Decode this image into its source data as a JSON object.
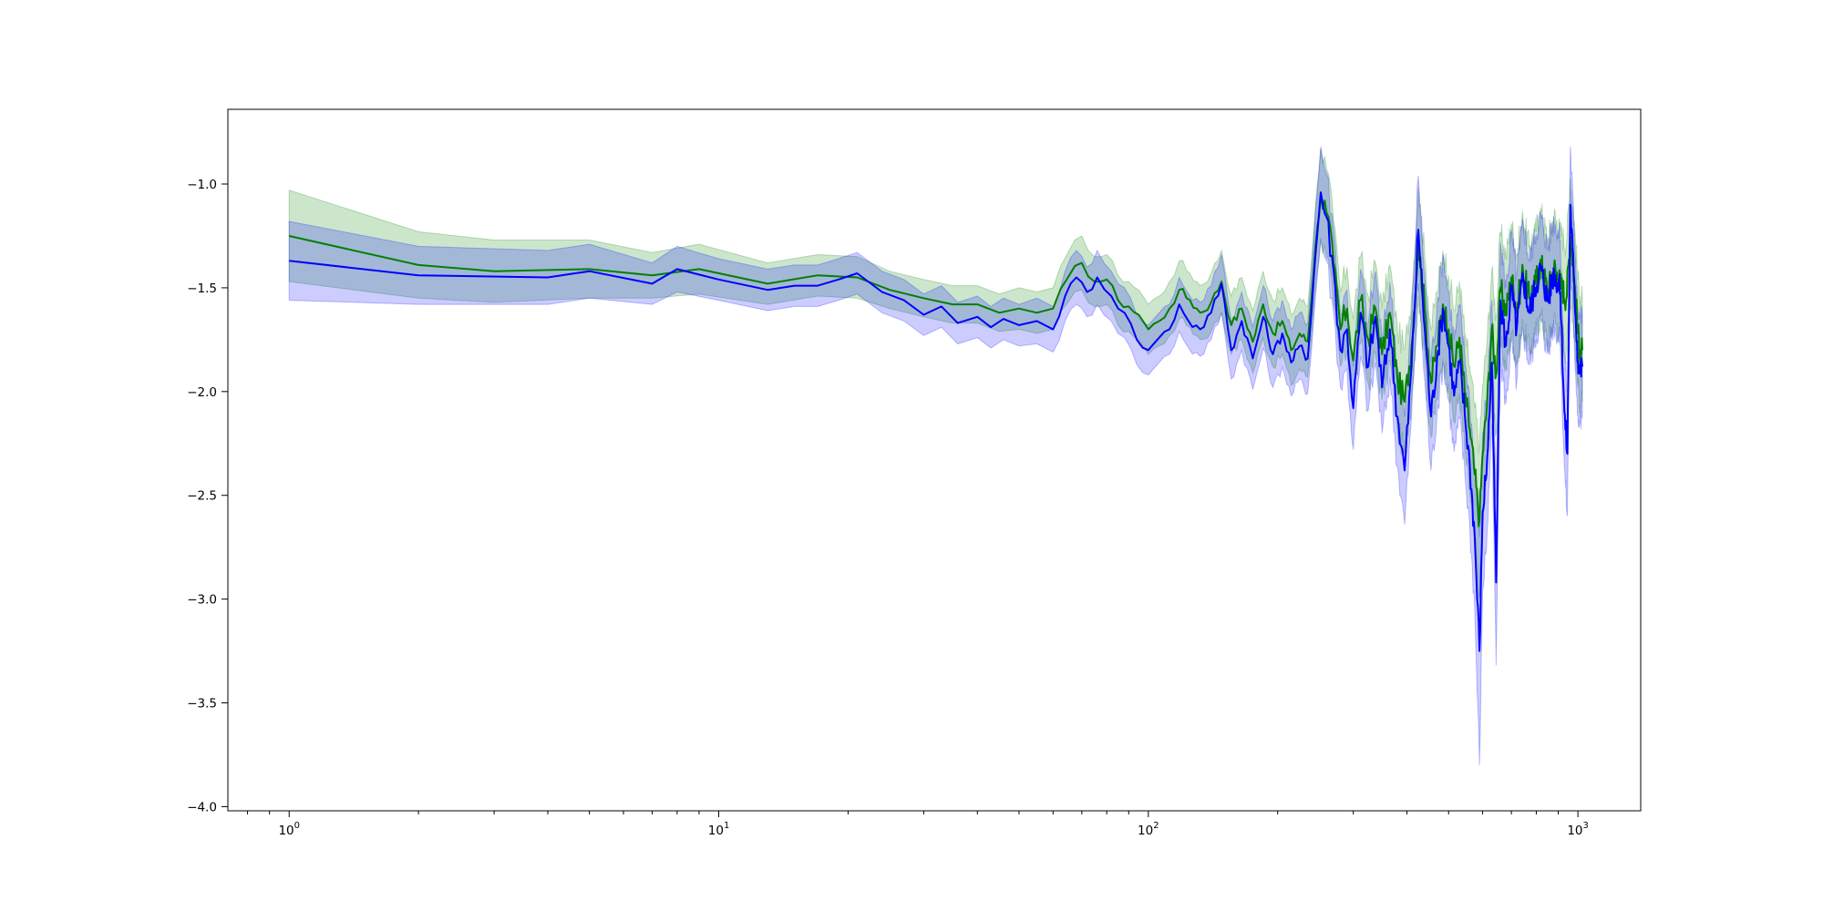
{
  "chart_data": {
    "type": "line",
    "title": "",
    "xlabel": "",
    "ylabel": "",
    "x_scale": "log",
    "xlim": [
      0.72,
      1400
    ],
    "ylim": [
      -4.02,
      -0.64
    ],
    "grid": false,
    "legend": "none",
    "x_ticks": [
      {
        "value": 1,
        "base": "10",
        "exp": "0"
      },
      {
        "value": 10,
        "base": "10",
        "exp": "1"
      },
      {
        "value": 100,
        "base": "10",
        "exp": "2"
      },
      {
        "value": 1000,
        "base": "10",
        "exp": "3"
      }
    ],
    "y_ticks": [
      {
        "value": -1.0,
        "label": "−1.0"
      },
      {
        "value": -1.5,
        "label": "−1.5"
      },
      {
        "value": -2.0,
        "label": "−2.0"
      },
      {
        "value": -2.5,
        "label": "−2.5"
      },
      {
        "value": -3.0,
        "label": "−3.0"
      },
      {
        "value": -3.5,
        "label": "−3.5"
      },
      {
        "value": -4.0,
        "label": "−4.0"
      }
    ],
    "series": [
      {
        "color": "#008000",
        "band_color": "#008000",
        "band_opacity": 0.2,
        "points": [
          [
            1,
            -1.25,
            0.22
          ],
          [
            2,
            -1.39,
            0.16
          ],
          [
            3,
            -1.42,
            0.15
          ],
          [
            5,
            -1.41,
            0.14
          ],
          [
            7,
            -1.44,
            0.11
          ],
          [
            9,
            -1.41,
            0.12
          ],
          [
            13,
            -1.48,
            0.1
          ],
          [
            17,
            -1.44,
            0.1
          ],
          [
            21,
            -1.45,
            0.1
          ],
          [
            25,
            -1.51,
            0.09
          ],
          [
            30,
            -1.55,
            0.09
          ],
          [
            35,
            -1.58,
            0.09
          ],
          [
            40,
            -1.58,
            0.09
          ],
          [
            45,
            -1.62,
            0.09
          ],
          [
            50,
            -1.6,
            0.1
          ],
          [
            55,
            -1.62,
            0.1
          ],
          [
            60,
            -1.6,
            0.1
          ],
          [
            65,
            -1.45,
            0.12
          ],
          [
            70,
            -1.38,
            0.13
          ],
          [
            75,
            -1.47,
            0.12
          ],
          [
            80,
            -1.46,
            0.12
          ],
          [
            85,
            -1.56,
            0.12
          ],
          [
            90,
            -1.59,
            0.12
          ],
          [
            95,
            -1.63,
            0.12
          ],
          [
            100,
            -1.7,
            0.12
          ],
          [
            106,
            -1.66,
            0.12
          ],
          [
            112,
            -1.6,
            0.13
          ],
          [
            118,
            -1.51,
            0.14
          ],
          [
            125,
            -1.56,
            0.13
          ],
          [
            132,
            -1.62,
            0.13
          ],
          [
            140,
            -1.57,
            0.14
          ],
          [
            148,
            -1.47,
            0.15
          ],
          [
            156,
            -1.68,
            0.14
          ],
          [
            165,
            -1.6,
            0.15
          ],
          [
            175,
            -1.76,
            0.15
          ],
          [
            185,
            -1.58,
            0.16
          ],
          [
            195,
            -1.72,
            0.16
          ],
          [
            205,
            -1.66,
            0.16
          ],
          [
            215,
            -1.8,
            0.17
          ],
          [
            225,
            -1.72,
            0.17
          ],
          [
            235,
            -1.76,
            0.17
          ],
          [
            245,
            -1.3,
            0.2
          ],
          [
            252,
            -1.05,
            0.22
          ],
          [
            260,
            -1.14,
            0.21
          ],
          [
            270,
            -1.38,
            0.2
          ],
          [
            280,
            -1.7,
            0.18
          ],
          [
            290,
            -1.6,
            0.2
          ],
          [
            300,
            -1.85,
            0.2
          ],
          [
            312,
            -1.56,
            0.21
          ],
          [
            325,
            -1.75,
            0.21
          ],
          [
            338,
            -1.6,
            0.22
          ],
          [
            350,
            -1.82,
            0.22
          ],
          [
            365,
            -1.62,
            0.23
          ],
          [
            380,
            -1.94,
            0.24
          ],
          [
            395,
            -2.05,
            0.25
          ],
          [
            410,
            -1.78,
            0.24
          ],
          [
            425,
            -1.28,
            0.26
          ],
          [
            440,
            -1.6,
            0.25
          ],
          [
            455,
            -1.96,
            0.26
          ],
          [
            470,
            -1.78,
            0.26
          ],
          [
            485,
            -1.58,
            0.26
          ],
          [
            500,
            -1.7,
            0.26
          ],
          [
            515,
            -1.88,
            0.27
          ],
          [
            530,
            -1.74,
            0.27
          ],
          [
            545,
            -2.0,
            0.28
          ],
          [
            560,
            -2.18,
            0.3
          ],
          [
            575,
            -2.4,
            0.32
          ],
          [
            590,
            -2.62,
            0.36
          ],
          [
            600,
            -2.3,
            0.33
          ],
          [
            615,
            -2.05,
            0.3
          ],
          [
            630,
            -1.7,
            0.28
          ],
          [
            645,
            -1.92,
            0.28
          ],
          [
            660,
            -1.5,
            0.27
          ],
          [
            680,
            -1.62,
            0.27
          ],
          [
            700,
            -1.45,
            0.26
          ],
          [
            720,
            -1.6,
            0.26
          ],
          [
            745,
            -1.42,
            0.26
          ],
          [
            770,
            -1.55,
            0.25
          ],
          [
            795,
            -1.48,
            0.25
          ],
          [
            820,
            -1.38,
            0.25
          ],
          [
            850,
            -1.52,
            0.25
          ],
          [
            880,
            -1.4,
            0.25
          ],
          [
            910,
            -1.48,
            0.25
          ],
          [
            940,
            -1.55,
            0.26
          ],
          [
            960,
            -1.25,
            0.28
          ],
          [
            980,
            -1.45,
            0.27
          ],
          [
            1000,
            -1.72,
            0.26
          ],
          [
            1010,
            -1.8,
            0.26
          ],
          [
            1024,
            -1.8,
            0.25
          ]
        ]
      },
      {
        "color": "#0000ff",
        "band_color": "#0000ff",
        "band_opacity": 0.2,
        "points": [
          [
            1,
            -1.37,
            0.19
          ],
          [
            2,
            -1.44,
            0.14
          ],
          [
            4,
            -1.45,
            0.13
          ],
          [
            5,
            -1.42,
            0.13
          ],
          [
            7,
            -1.48,
            0.1
          ],
          [
            8,
            -1.41,
            0.11
          ],
          [
            10,
            -1.46,
            0.1
          ],
          [
            13,
            -1.51,
            0.1
          ],
          [
            15,
            -1.49,
            0.1
          ],
          [
            17,
            -1.49,
            0.1
          ],
          [
            19,
            -1.46,
            0.1
          ],
          [
            21,
            -1.43,
            0.1
          ],
          [
            24,
            -1.52,
            0.1
          ],
          [
            27,
            -1.56,
            0.1
          ],
          [
            30,
            -1.63,
            0.1
          ],
          [
            33,
            -1.59,
            0.1
          ],
          [
            36,
            -1.67,
            0.1
          ],
          [
            40,
            -1.64,
            0.1
          ],
          [
            43,
            -1.69,
            0.1
          ],
          [
            46,
            -1.65,
            0.1
          ],
          [
            50,
            -1.68,
            0.1
          ],
          [
            55,
            -1.66,
            0.11
          ],
          [
            60,
            -1.7,
            0.11
          ],
          [
            64,
            -1.54,
            0.12
          ],
          [
            68,
            -1.45,
            0.13
          ],
          [
            72,
            -1.52,
            0.12
          ],
          [
            76,
            -1.45,
            0.13
          ],
          [
            82,
            -1.54,
            0.12
          ],
          [
            88,
            -1.62,
            0.12
          ],
          [
            94,
            -1.75,
            0.12
          ],
          [
            100,
            -1.8,
            0.12
          ],
          [
            106,
            -1.74,
            0.12
          ],
          [
            112,
            -1.7,
            0.12
          ],
          [
            118,
            -1.58,
            0.13
          ],
          [
            124,
            -1.66,
            0.13
          ],
          [
            132,
            -1.7,
            0.13
          ],
          [
            140,
            -1.62,
            0.13
          ],
          [
            148,
            -1.48,
            0.14
          ],
          [
            156,
            -1.8,
            0.14
          ],
          [
            165,
            -1.66,
            0.14
          ],
          [
            175,
            -1.84,
            0.15
          ],
          [
            185,
            -1.64,
            0.15
          ],
          [
            195,
            -1.82,
            0.16
          ],
          [
            205,
            -1.72,
            0.16
          ],
          [
            215,
            -1.86,
            0.16
          ],
          [
            225,
            -1.78,
            0.16
          ],
          [
            235,
            -1.84,
            0.17
          ],
          [
            245,
            -1.34,
            0.2
          ],
          [
            252,
            -1.04,
            0.22
          ],
          [
            260,
            -1.16,
            0.21
          ],
          [
            270,
            -1.42,
            0.2
          ],
          [
            280,
            -1.8,
            0.18
          ],
          [
            290,
            -1.7,
            0.19
          ],
          [
            300,
            -2.08,
            0.2
          ],
          [
            312,
            -1.62,
            0.21
          ],
          [
            325,
            -1.88,
            0.21
          ],
          [
            338,
            -1.64,
            0.22
          ],
          [
            350,
            -1.98,
            0.22
          ],
          [
            365,
            -1.7,
            0.23
          ],
          [
            380,
            -2.12,
            0.24
          ],
          [
            395,
            -2.38,
            0.26
          ],
          [
            410,
            -1.88,
            0.24
          ],
          [
            425,
            -1.22,
            0.26
          ],
          [
            440,
            -1.7,
            0.25
          ],
          [
            455,
            -2.12,
            0.26
          ],
          [
            470,
            -1.84,
            0.26
          ],
          [
            485,
            -1.6,
            0.26
          ],
          [
            500,
            -1.78,
            0.26
          ],
          [
            515,
            -2.02,
            0.27
          ],
          [
            530,
            -1.86,
            0.27
          ],
          [
            545,
            -2.1,
            0.28
          ],
          [
            560,
            -2.35,
            0.3
          ],
          [
            575,
            -2.7,
            0.34
          ],
          [
            590,
            -3.25,
            0.55
          ],
          [
            600,
            -2.58,
            0.38
          ],
          [
            615,
            -2.32,
            0.35
          ],
          [
            630,
            -1.86,
            0.3
          ],
          [
            645,
            -2.92,
            0.4
          ],
          [
            660,
            -1.56,
            0.28
          ],
          [
            680,
            -1.78,
            0.28
          ],
          [
            700,
            -1.5,
            0.26
          ],
          [
            720,
            -1.7,
            0.26
          ],
          [
            745,
            -1.44,
            0.26
          ],
          [
            770,
            -1.62,
            0.25
          ],
          [
            795,
            -1.5,
            0.25
          ],
          [
            820,
            -1.4,
            0.25
          ],
          [
            850,
            -1.56,
            0.25
          ],
          [
            880,
            -1.42,
            0.25
          ],
          [
            910,
            -1.52,
            0.25
          ],
          [
            930,
            -2.1,
            0.27
          ],
          [
            945,
            -2.3,
            0.3
          ],
          [
            960,
            -1.1,
            0.28
          ],
          [
            980,
            -1.48,
            0.27
          ],
          [
            1000,
            -1.85,
            0.26
          ],
          [
            1010,
            -1.9,
            0.26
          ],
          [
            1024,
            -1.88,
            0.25
          ]
        ]
      }
    ]
  }
}
